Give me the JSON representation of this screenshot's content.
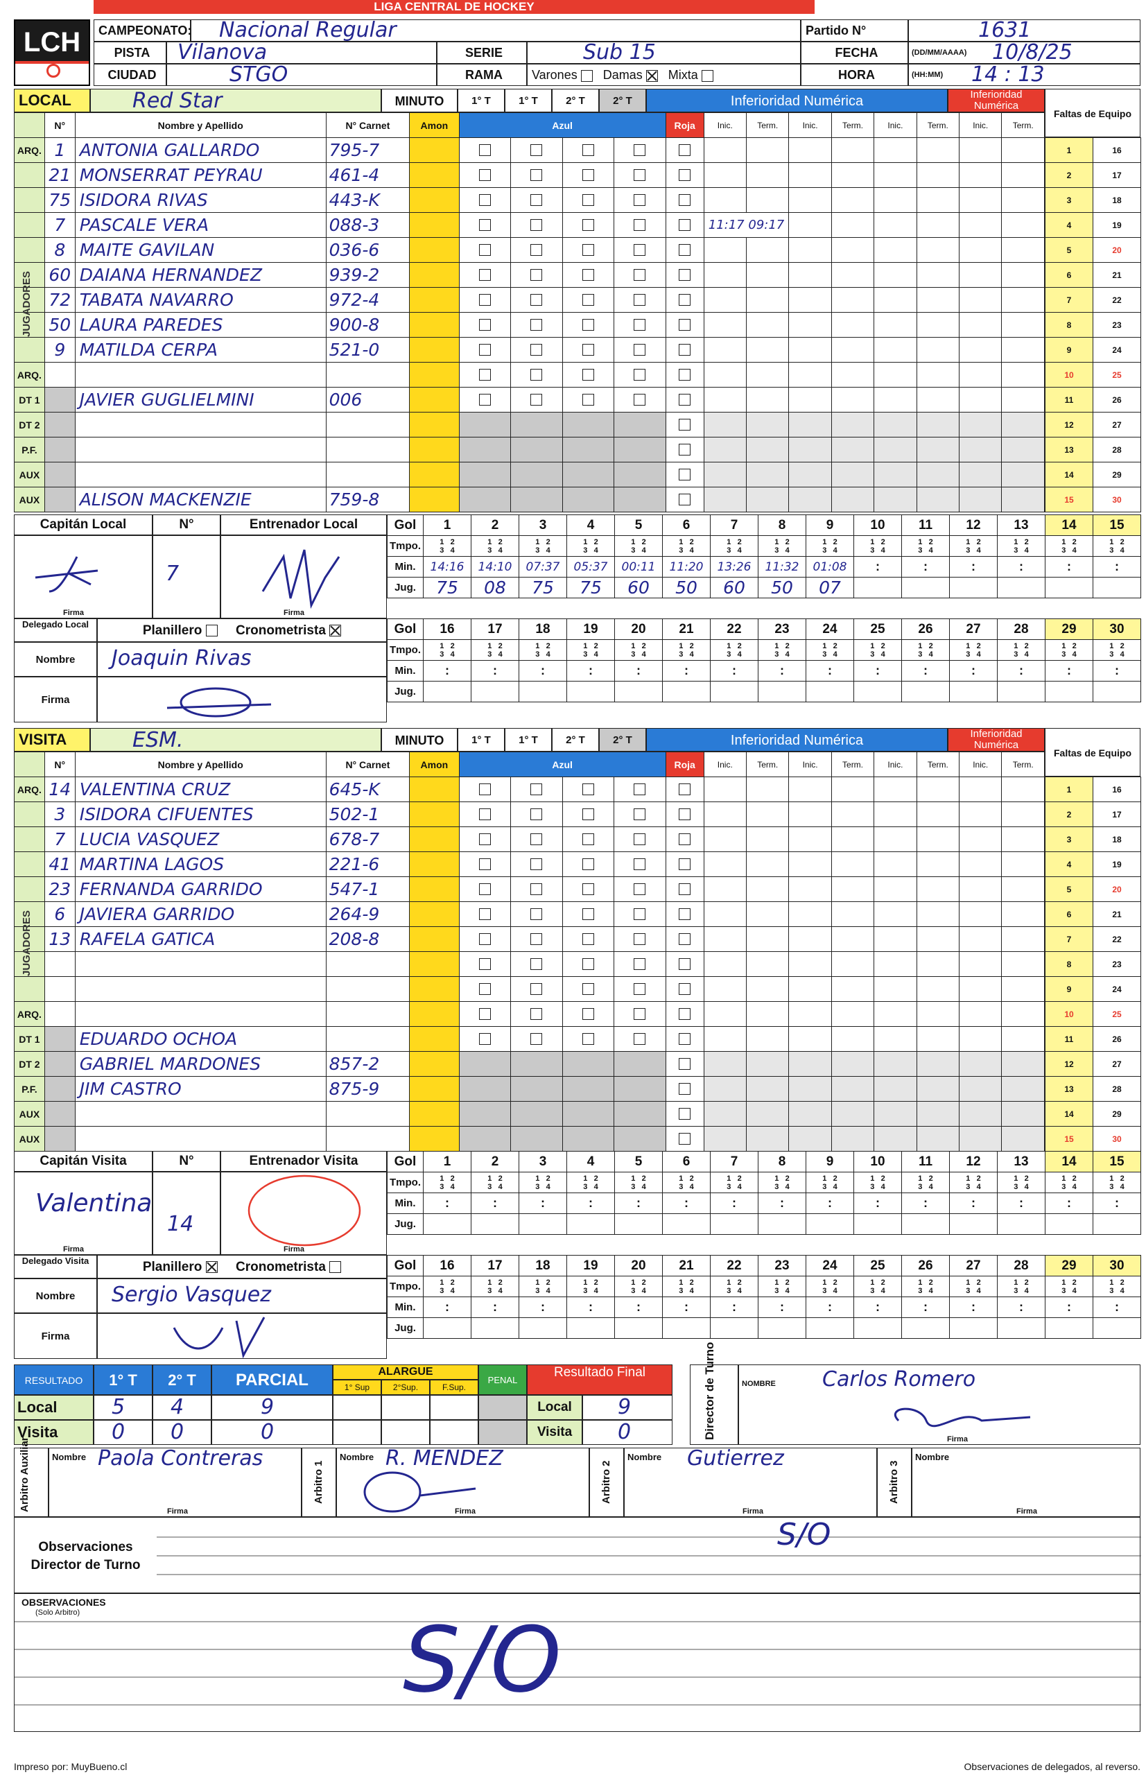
{
  "header": {
    "league": "LIGA CENTRAL DE HOCKEY",
    "logo_text": "LCH",
    "labels": {
      "campeonato": "CAMPEONATO:",
      "pista": "PISTA",
      "ciudad": "CIUDAD",
      "serie": "SERIE",
      "rama": "RAMA",
      "varones": "Varones",
      "damas": "Damas",
      "mixta": "Mixta",
      "partido": "Partido N°",
      "fecha": "FECHA",
      "fecha_fmt": "(DD/MM/AAAA)",
      "hora": "HORA",
      "hora_fmt": "(HH:MM)"
    },
    "values": {
      "campeonato": "Nacional Regular",
      "pista": "Vilanova",
      "ciudad": "STGO",
      "serie": "Sub 15",
      "partido": "1631",
      "fecha": "10/8/25",
      "hora": "14 : 13"
    }
  },
  "labels": {
    "local": "LOCAL",
    "visita": "VISITA",
    "minuto": "MINUTO",
    "t1": "1° T",
    "t2": "2° T",
    "num": "N°",
    "nombre": "Nombre y Apellido",
    "carnet": "N° Carnet",
    "amon": "Amon",
    "azul": "Azul",
    "roja": "Roja",
    "inf": "Inferioridad Numérica",
    "inic": "Inic.",
    "term": "Term.",
    "faltas": "Faltas de Equipo",
    "jugadores": "JUGADORES",
    "arq": "ARQ.",
    "dt1": "DT 1",
    "dt2": "DT 2",
    "pf": "P.F.",
    "aux": "AUX",
    "capitan_local": "Capitán Local",
    "capitan_visita": "Capitán Visita",
    "entrenador_local": "Entrenador Local",
    "entrenador_visita": "Entrenador Visita",
    "n": "N°",
    "gol": "Gol",
    "tmpo": "Tmpo.",
    "min": "Min.",
    "jug": "Jug.",
    "firma": "Firma",
    "delegado_local": "Delegado Local",
    "delegado_visita": "Delegado Visita",
    "planillero": "Planillero",
    "cronometrista": "Cronometrista",
    "nombre_lbl": "Nombre",
    "resultado": "RESULTADO",
    "parcial": "PARCIAL",
    "alargue": "ALARGUE",
    "sup1": "1° Sup",
    "sup2": "2°Sup.",
    "fsup": "F.Sup.",
    "penal": "PENAL",
    "resultado_final": "Resultado Final",
    "local_row": "Local",
    "visita_row": "Visita",
    "director": "Director de Turno",
    "nombre_caps": "NOMBRE",
    "arbitro_aux": "Arbitro Auxiliar",
    "arbitro1": "Arbitro 1",
    "arbitro2": "Arbitro 2",
    "arbitro3": "Arbitro 3",
    "obs_director": "Observaciones Director de Turno",
    "observaciones": "OBSERVACIONES",
    "solo_arbitro": "(Solo Arbitro)",
    "impreso": "Impreso por: MuyBueno.cl",
    "obs_delegados": "Observaciones de delegados, al reverso."
  },
  "local": {
    "team": "Red Star",
    "players": [
      {
        "role": "ARQ.",
        "num": "1",
        "name": "ANTONIA GALLARDO",
        "carnet": "795-7"
      },
      {
        "role": "",
        "num": "21",
        "name": "MONSERRAT PEYRAU",
        "carnet": "461-4"
      },
      {
        "role": "",
        "num": "75",
        "name": "ISIDORA RIVAS",
        "carnet": "443-K"
      },
      {
        "role": "",
        "num": "7",
        "name": "PASCALE VERA",
        "carnet": "088-3"
      },
      {
        "role": "",
        "num": "8",
        "name": "MAITE GAVILAN",
        "carnet": "036-6"
      },
      {
        "role": "",
        "num": "60",
        "name": "DAIANA HERNANDEZ",
        "carnet": "939-2"
      },
      {
        "role": "",
        "num": "72",
        "name": "TABATA NAVARRO",
        "carnet": "972-4"
      },
      {
        "role": "",
        "num": "50",
        "name": "LAURA PAREDES",
        "carnet": "900-8"
      },
      {
        "role": "",
        "num": "9",
        "name": "MATILDA CERPA",
        "carnet": "521-0"
      },
      {
        "role": "ARQ.",
        "num": "",
        "name": "",
        "carnet": ""
      },
      {
        "role": "DT 1",
        "num": "",
        "name": "JAVIER GUGLIELMINI",
        "carnet": "006"
      },
      {
        "role": "DT 2",
        "num": "",
        "name": "",
        "carnet": ""
      },
      {
        "role": "P.F.",
        "num": "",
        "name": "",
        "carnet": ""
      },
      {
        "role": "AUX",
        "num": "",
        "name": "",
        "carnet": ""
      },
      {
        "role": "AUX",
        "num": "",
        "name": "ALISON MACKENZIE",
        "carnet": "759-8"
      }
    ],
    "inferiority_note": "11:17 09:17",
    "captain_num": "7",
    "goals": {
      "min": [
        "14:16",
        "14:10",
        "07:37",
        "05:37",
        "00:11",
        "11:20",
        "13:26",
        "11:32",
        "01:08",
        "",
        "",
        "",
        "",
        "",
        ""
      ],
      "jug": [
        "75",
        "08",
        "75",
        "75",
        "60",
        "50",
        "60",
        "50",
        "07",
        "",
        "",
        "",
        "",
        "",
        ""
      ]
    },
    "delegado": "Joaquin Rivas"
  },
  "visita": {
    "team": "ESM.",
    "players": [
      {
        "role": "ARQ.",
        "num": "14",
        "name": "VALENTINA CRUZ",
        "carnet": "645-K"
      },
      {
        "role": "",
        "num": "3",
        "name": "ISIDORA CIFUENTES",
        "carnet": "502-1"
      },
      {
        "role": "",
        "num": "7",
        "name": "LUCIA VASQUEZ",
        "carnet": "678-7"
      },
      {
        "role": "",
        "num": "41",
        "name": "MARTINA LAGOS",
        "carnet": "221-6"
      },
      {
        "role": "",
        "num": "23",
        "name": "FERNANDA GARRIDO",
        "carnet": "547-1"
      },
      {
        "role": "",
        "num": "6",
        "name": "JAVIERA GARRIDO",
        "carnet": "264-9"
      },
      {
        "role": "",
        "num": "13",
        "name": "RAFELA GATICA",
        "carnet": "208-8"
      },
      {
        "role": "",
        "num": "",
        "name": "",
        "carnet": ""
      },
      {
        "role": "",
        "num": "",
        "name": "",
        "carnet": ""
      },
      {
        "role": "ARQ.",
        "num": "",
        "name": "",
        "carnet": ""
      },
      {
        "role": "DT 1",
        "num": "",
        "name": "EDUARDO OCHOA",
        "carnet": ""
      },
      {
        "role": "DT 2",
        "num": "",
        "name": "GABRIEL MARDONES",
        "carnet": "857-2"
      },
      {
        "role": "P.F.",
        "num": "",
        "name": "JIM CASTRO",
        "carnet": "875-9"
      },
      {
        "role": "AUX",
        "num": "",
        "name": "",
        "carnet": ""
      },
      {
        "role": "AUX",
        "num": "",
        "name": "",
        "carnet": ""
      }
    ],
    "captain_name": "Valentina",
    "captain_num": "14",
    "delegado": "Sergio Vasquez"
  },
  "faltas": {
    "col1": [
      "1",
      "2",
      "3",
      "4",
      "5",
      "6",
      "7",
      "8",
      "9",
      "10",
      "11",
      "12",
      "13",
      "14",
      "15"
    ],
    "col2": [
      "16",
      "17",
      "18",
      "19",
      "20",
      "21",
      "22",
      "23",
      "24",
      "25",
      "26",
      "27",
      "28",
      "29",
      "30"
    ]
  },
  "goal_cols_1": [
    "1",
    "2",
    "3",
    "4",
    "5",
    "6",
    "7",
    "8",
    "9",
    "10",
    "11",
    "12",
    "13",
    "14",
    "15"
  ],
  "goal_cols_2": [
    "16",
    "17",
    "18",
    "19",
    "20",
    "21",
    "22",
    "23",
    "24",
    "25",
    "26",
    "27",
    "28",
    "29",
    "30"
  ],
  "resultado": {
    "local": {
      "t1": "5",
      "t2": "4",
      "parcial": "9",
      "final": "9"
    },
    "visita": {
      "t1": "0",
      "t2": "0",
      "parcial": "0",
      "final": "0"
    }
  },
  "officials": {
    "director": "Carlos Romero",
    "arbitro_aux": "Paola Contreras",
    "arbitro1": "R. MENDEZ",
    "arbitro2": "Gutierrez"
  },
  "observaciones_mark": "S/O",
  "colors": {
    "red": "#e63b2e",
    "yellow": "#ffd91c",
    "blue": "#2a7bd6",
    "green": "#dff0bf",
    "ink": "#23268f"
  }
}
